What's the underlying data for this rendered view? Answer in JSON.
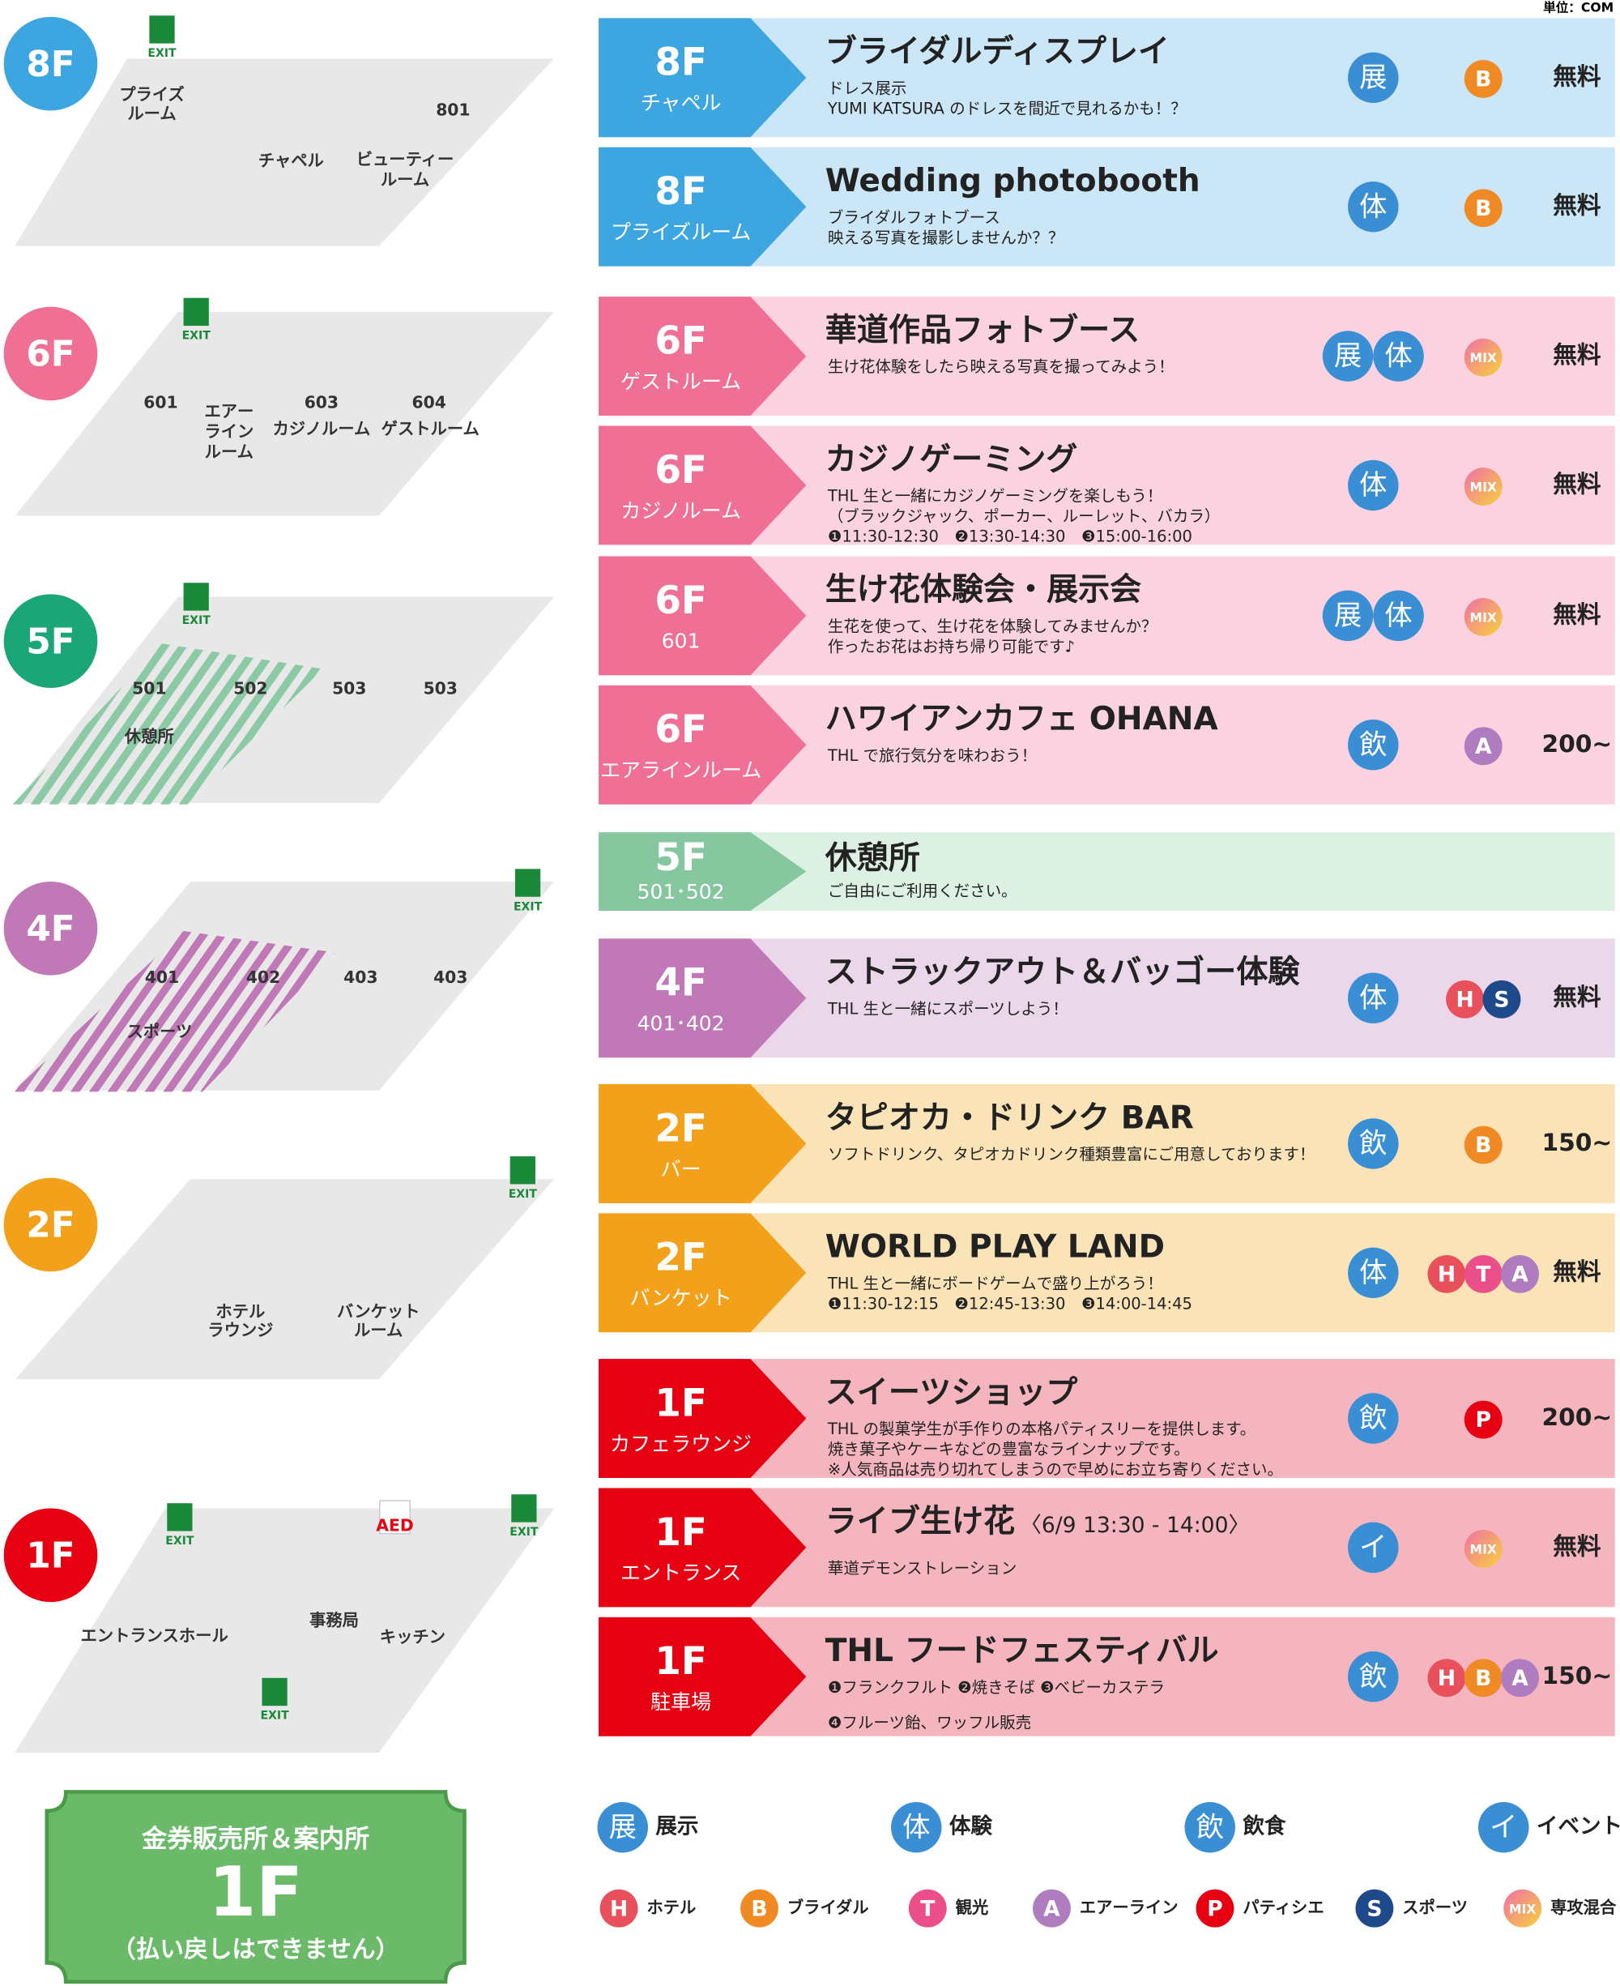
{
  "unit": "単位：COM",
  "maps": [
    {
      "badge": "8F",
      "color": "#3da6e0",
      "labels": [
        "EXIT",
        "プライズ",
        "ルーム",
        "801",
        "チャペル",
        "ビューティー",
        "ルーム"
      ]
    },
    {
      "badge": "6F",
      "color": "#f06f95",
      "labels": [
        "EXIT",
        "601",
        "エアー",
        "ライン",
        "ルーム",
        "603",
        "カジノルーム",
        "604",
        "ゲストルーム"
      ]
    },
    {
      "badge": "5F",
      "color": "#1aa677",
      "labels": [
        "EXIT",
        "501",
        "502",
        "503",
        "503",
        "休憩所"
      ]
    },
    {
      "badge": "4F",
      "color": "#c178b7",
      "labels": [
        "EXIT",
        "401",
        "402",
        "403",
        "403",
        "スポーツ"
      ]
    },
    {
      "badge": "2F",
      "color": "#f3a11a",
      "labels": [
        "EXIT",
        "ホテル",
        "ラウンジ",
        "バンケット",
        "ルーム"
      ]
    },
    {
      "badge": "1F",
      "color": "#e60012",
      "labels": [
        "EXIT",
        "EXIT",
        "AED",
        "事務局",
        "エントランスホール",
        "キッチン",
        "EXIT"
      ]
    }
  ],
  "events": [
    {
      "floor": "8F",
      "room": "チャペル",
      "title": "ブライダルディスプレイ",
      "desc": [
        "ドレス展示",
        "YUMI KATSURA のドレスを間近で見れるかも！？"
      ],
      "types": [
        "展"
      ],
      "depts": [
        "B"
      ],
      "price": "無料",
      "color": "#3da6e0",
      "bg": "#cbe6f6"
    },
    {
      "floor": "8F",
      "room": "プライズルーム",
      "title": "Wedding photobooth",
      "desc": [
        "ブライダルフォトブース",
        "映える写真を撮影しませんか？？"
      ],
      "types": [
        "体"
      ],
      "depts": [
        "B"
      ],
      "price": "無料",
      "color": "#3da6e0",
      "bg": "#cbe6f6"
    },
    {
      "floor": "6F",
      "room": "ゲストルーム",
      "title": "華道作品フォトブース",
      "desc": [
        "生け花体験をしたら映える写真を撮ってみよう！"
      ],
      "types": [
        "展",
        "体"
      ],
      "depts": [
        "MIX"
      ],
      "price": "無料",
      "color": "#f06f95",
      "bg": "#fbd3e0"
    },
    {
      "floor": "6F",
      "room": "カジノルーム",
      "title": "カジノゲーミング",
      "desc": [
        "THL 生と一緒にカジノゲーミングを楽しもう！",
        "（ブラックジャック、ポーカー、ルーレット、バカラ）",
        "❶11:30-12:30　❷13:30-14:30　❸15:00-16:00"
      ],
      "types": [
        "体"
      ],
      "depts": [
        "MIX"
      ],
      "price": "無料",
      "color": "#f06f95",
      "bg": "#fbd3e0"
    },
    {
      "floor": "6F",
      "room": "601",
      "title": "生け花体験会・展示会",
      "desc": [
        "生花を使って、生け花を体験してみませんか？",
        "作ったお花はお持ち帰り可能です♪"
      ],
      "types": [
        "展",
        "体"
      ],
      "depts": [
        "MIX"
      ],
      "price": "無料",
      "color": "#f06f95",
      "bg": "#fbd3e0"
    },
    {
      "floor": "6F",
      "room": "エアラインルーム",
      "title": "ハワイアンカフェ OHANA",
      "desc": [
        "THL で旅行気分を味わおう！"
      ],
      "types": [
        "飲"
      ],
      "depts": [
        "A"
      ],
      "price": "200~",
      "color": "#f06f95",
      "bg": "#fbd3e0"
    },
    {
      "floor": "5F",
      "room": "501･502",
      "title": "休憩所",
      "desc": [
        "ご自由にご利用ください。"
      ],
      "types": [],
      "depts": [],
      "color": "#86c7a0",
      "bg": "#ddf0e4"
    },
    {
      "floor": "4F",
      "room": "401･402",
      "title": "ストラックアウト＆バッゴー体験",
      "desc": [
        "THL 生と一緒にスポーツしよう！"
      ],
      "types": [
        "体"
      ],
      "depts": [
        "H",
        "S"
      ],
      "price": "無料",
      "color": "#c178b7",
      "bg": "#ebd7ea"
    },
    {
      "floor": "2F",
      "room": "バー",
      "title": "タピオカ・ドリンク BAR",
      "desc": [
        "ソフトドリンク、タピオカドリンク種類豊富にご用意しております！"
      ],
      "types": [
        "飲"
      ],
      "depts": [
        "B"
      ],
      "price": "150~",
      "color": "#f3a11a",
      "bg": "#fbe3b8"
    },
    {
      "floor": "2F",
      "room": "バンケット",
      "title": "WORLD PLAY LAND",
      "desc": [
        "THL 生と一緒にボードゲームで盛り上がろう！",
        "❶11:30-12:15　❷12:45-13:30　❸14:00-14:45"
      ],
      "types": [
        "体"
      ],
      "depts": [
        "H",
        "T",
        "A"
      ],
      "price": "無料",
      "color": "#f3a11a",
      "bg": "#fbe3b8"
    },
    {
      "floor": "1F",
      "room": "カフェラウンジ",
      "title": "スイーツショップ",
      "desc": [
        "THL の製菓学生が手作りの本格パティスリーを提供します。",
        "焼き菓子やケーキなどの豊富なラインナップです。",
        "※人気商品は売り切れてしまうので早めにお立ち寄りください。"
      ],
      "types": [
        "飲"
      ],
      "depts": [
        "P"
      ],
      "price": "200~",
      "color": "#e60012",
      "bg": "#f5b5bf"
    },
    {
      "floor": "1F",
      "room": "エントランス",
      "title": "ライブ生け花",
      "title_note": "〈6/9 13:30 - 14:00〉",
      "desc": [
        "華道デモンストレーション"
      ],
      "types": [
        "イ"
      ],
      "depts": [
        "MIX"
      ],
      "price": "無料",
      "color": "#e60012",
      "bg": "#f5b5bf"
    },
    {
      "floor": "1F",
      "room": "駐車場",
      "title": "THL フードフェスティバル",
      "desc": [
        "❶フランクフルト ❷焼きそば ❸ベビーカステラ",
        "❹フルーツ飴、ワッフル販売"
      ],
      "types": [
        "飲"
      ],
      "depts": [
        "H",
        "B",
        "A"
      ],
      "price": "150~",
      "color": "#e60012",
      "bg": "#f5b5bf"
    }
  ],
  "type_legend": [
    {
      "icon": "展",
      "label": "展示"
    },
    {
      "icon": "体",
      "label": "体験"
    },
    {
      "icon": "飲",
      "label": "飲食"
    },
    {
      "icon": "イ",
      "label": "イベント"
    }
  ],
  "type_color": "#3a8fd4",
  "dept_legend": [
    {
      "icon": "H",
      "label": "ホテル",
      "color": "#e8505b"
    },
    {
      "icon": "B",
      "label": "ブライダル",
      "color": "#f08a24"
    },
    {
      "icon": "T",
      "label": "観光",
      "color": "#ea4f8a"
    },
    {
      "icon": "A",
      "label": "エアーライン",
      "color": "#b07cc0"
    },
    {
      "icon": "P",
      "label": "パティシエ",
      "color": "#e60012"
    },
    {
      "icon": "S",
      "label": "スポーツ",
      "color": "#1e4a8c"
    },
    {
      "icon": "MIX",
      "label": "専攻混合",
      "color": "#f07aa8"
    }
  ],
  "ticket": {
    "line1": "金券販売所＆案内所",
    "floor": "1F",
    "note": "（払い戻しはできません）"
  }
}
